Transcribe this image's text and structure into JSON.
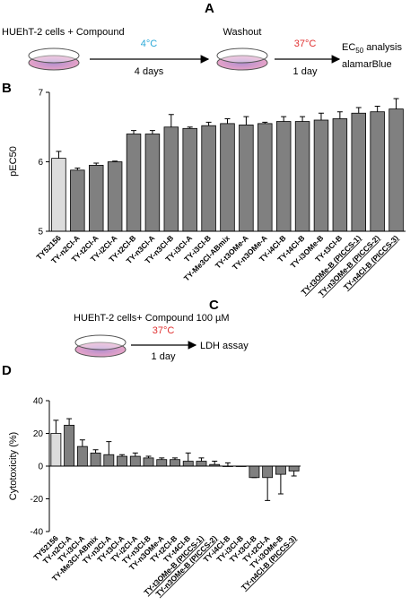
{
  "panels": {
    "a": "A",
    "b": "B",
    "c": "C",
    "d": "D"
  },
  "schematic_a": {
    "cells": "HUEhT-2 cells + Compound",
    "temp1": "4°C",
    "time1": "4 days",
    "washout": "Washout",
    "temp2": "37°C",
    "time2": "1 day",
    "ec": "EC",
    "ec_sub": "50",
    "ec_rest": " analysis",
    "assay": "alamarBlue"
  },
  "schematic_c": {
    "cells": "HUEhT-2 cells+ Compound 100 µM",
    "temp": "37°C",
    "time": "1 day",
    "assay": "LDH assay"
  },
  "chart_data": [
    {
      "type": "bar",
      "ylabel": "pEC50",
      "categories": [
        "TY52156",
        "TY-n2Cl-A",
        "TY-t2Cl-A",
        "TY-i2Cl-A",
        "TY-t2Cl-B",
        "TY-n3Cl-A",
        "TY-n3Cl-B",
        "TY-i3Cl-A",
        "TY-i3Cl-B",
        "TY-Me3Cl-ABmix",
        "TY-t3OMe-A",
        "TY-n3OMe-A",
        "TY-i4Cl-B",
        "TY-t4Cl-B",
        "TY-i3OMe-B",
        "TY-t3Cl-B",
        "TY-t3OMe-B (PICCS-1)",
        "TY-n3OMe-B (PICCS-2)",
        "TY-n4Cl-B (PICCS-3)"
      ],
      "values": [
        6.05,
        5.88,
        5.95,
        6.0,
        6.4,
        6.4,
        6.5,
        6.48,
        6.52,
        6.55,
        6.53,
        6.55,
        6.58,
        6.58,
        6.6,
        6.62,
        6.7,
        6.72,
        6.76
      ],
      "errors": [
        0.1,
        0.03,
        0.03,
        0.01,
        0.05,
        0.05,
        0.18,
        0.02,
        0.05,
        0.07,
        0.12,
        0.02,
        0.07,
        0.07,
        0.1,
        0.1,
        0.08,
        0.08,
        0.15
      ],
      "underlined": [
        16,
        17,
        18
      ],
      "color": "#808080",
      "first_color": "#dcdcdc",
      "ylim": [
        5,
        7
      ],
      "yticks": [
        5,
        6,
        7
      ]
    },
    {
      "type": "bar",
      "ylabel": "Cytotoxicity (%)",
      "categories": [
        "TY52156",
        "TY-n2Cl-A",
        "TY-i3Cl-A",
        "TY-Me3Cl-ABmix",
        "TY-n3Cl-A",
        "TY-t3Cl-A",
        "TY-i2Cl-A",
        "TY-n3Cl-B",
        "TY-n3OMe-A",
        "TY-t2Cl-B",
        "TY-t4Cl-B",
        "TY-t3OMe-B (PICCS-1)",
        "TY-n3OMe-B (PICCS-2)",
        "TY-i4Cl-B",
        "TY-i3Cl-B",
        "TY-t3Cl-B",
        "TY-t2Cl-A",
        "TY-i3OMe-B",
        "TY-n4Cl-B (PICCS-3)"
      ],
      "values": [
        20,
        25,
        12,
        8,
        7,
        6,
        6,
        5,
        4,
        4,
        3,
        3,
        1,
        0,
        0,
        -7,
        -7,
        -5,
        -3
      ],
      "errors": [
        8,
        4,
        4,
        2,
        8,
        1,
        2,
        1,
        1,
        1,
        5,
        2,
        2,
        2,
        0,
        0,
        14,
        12,
        3
      ],
      "underlined": [
        11,
        12,
        18
      ],
      "color": "#808080",
      "first_color": "#dcdcdc",
      "ylim": [
        -40,
        40
      ],
      "yticks": [
        -40,
        -20,
        0,
        20,
        40
      ]
    }
  ]
}
